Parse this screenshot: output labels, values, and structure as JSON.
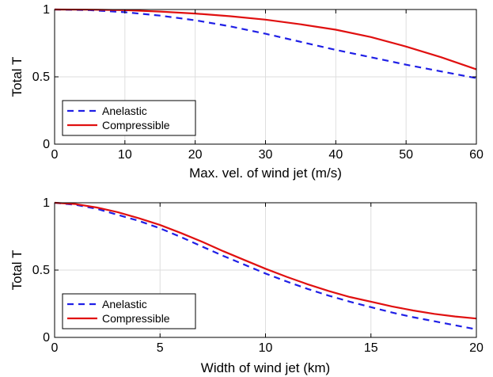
{
  "chart_data": [
    {
      "type": "line",
      "xlabel": "Max. vel. of wind jet (m/s)",
      "ylabel": "Total T",
      "xlim": [
        0,
        60
      ],
      "ylim": [
        0,
        1
      ],
      "xticks": [
        "0",
        "10",
        "20",
        "30",
        "40",
        "50",
        "60"
      ],
      "yticks": [
        "0",
        "0.5",
        "1"
      ],
      "grid": true,
      "legend_position": "bottom-left",
      "x": [
        0,
        5,
        10,
        15,
        20,
        25,
        30,
        35,
        40,
        45,
        50,
        55,
        60
      ],
      "series": [
        {
          "name": "Anelastic",
          "color": "#1f1fe6",
          "dash": "dashed",
          "values": [
            1.0,
            0.995,
            0.98,
            0.955,
            0.92,
            0.875,
            0.82,
            0.76,
            0.7,
            0.645,
            0.59,
            0.54,
            0.49
          ]
        },
        {
          "name": "Compressible",
          "color": "#e01010",
          "dash": "solid",
          "values": [
            1.0,
            0.999,
            0.995,
            0.985,
            0.97,
            0.95,
            0.925,
            0.89,
            0.85,
            0.795,
            0.725,
            0.645,
            0.555
          ]
        }
      ]
    },
    {
      "type": "line",
      "xlabel": "Width of wind jet (km)",
      "ylabel": "Total T",
      "xlim": [
        0,
        20
      ],
      "ylim": [
        0,
        1
      ],
      "xticks": [
        "0",
        "5",
        "10",
        "15",
        "20"
      ],
      "yticks": [
        "0",
        "0.5",
        "1"
      ],
      "grid": true,
      "legend_position": "bottom-left",
      "x": [
        0,
        1,
        2,
        3,
        4,
        5,
        6,
        7,
        8,
        9,
        10,
        11,
        12,
        13,
        14,
        15,
        16,
        17,
        18,
        19,
        20
      ],
      "series": [
        {
          "name": "Anelastic",
          "color": "#1f1fe6",
          "dash": "dashed",
          "values": [
            1.0,
            0.985,
            0.955,
            0.91,
            0.865,
            0.81,
            0.745,
            0.675,
            0.605,
            0.54,
            0.475,
            0.415,
            0.36,
            0.31,
            0.265,
            0.225,
            0.185,
            0.15,
            0.12,
            0.09,
            0.06
          ]
        },
        {
          "name": "Compressible",
          "color": "#e01010",
          "dash": "solid",
          "values": [
            1.0,
            0.99,
            0.965,
            0.93,
            0.885,
            0.835,
            0.775,
            0.71,
            0.64,
            0.575,
            0.51,
            0.45,
            0.395,
            0.345,
            0.3,
            0.265,
            0.23,
            0.2,
            0.175,
            0.155,
            0.14
          ]
        }
      ]
    }
  ]
}
